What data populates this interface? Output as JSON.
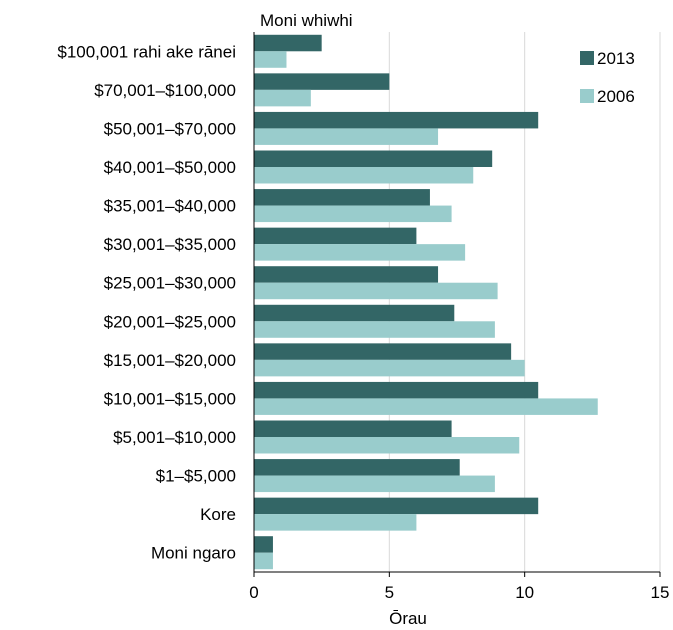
{
  "chart_data": {
    "type": "bar",
    "orientation": "horizontal",
    "y_axis_title": "Moni whiwhi",
    "xlabel": "Ōrau",
    "xlim": [
      0,
      15
    ],
    "xticks": [
      0,
      5,
      10,
      15
    ],
    "grid": "vertical at major ticks",
    "legend_position": "top-right",
    "categories": [
      "$100,001 rahi ake rānei",
      "$70,001–$100,000",
      "$50,001–$70,000",
      "$40,001–$50,000",
      "$35,001–$40,000",
      "$30,001–$35,000",
      "$25,001–$30,000",
      "$20,001–$25,000",
      "$15,001–$20,000",
      "$10,001–$15,000",
      "$5,001–$10,000",
      "$1–$5,000",
      "Kore",
      "Moni ngaro"
    ],
    "series": [
      {
        "name": "2013",
        "color": "#336666",
        "values": [
          2.5,
          5.0,
          10.5,
          8.8,
          6.5,
          6.0,
          6.8,
          7.4,
          9.5,
          10.5,
          7.3,
          7.6,
          10.5,
          0.7
        ]
      },
      {
        "name": "2006",
        "color": "#99CCCC",
        "values": [
          1.2,
          2.1,
          6.8,
          8.1,
          7.3,
          7.8,
          9.0,
          8.9,
          10.0,
          12.7,
          9.8,
          8.9,
          6.0,
          0.7
        ]
      }
    ]
  }
}
